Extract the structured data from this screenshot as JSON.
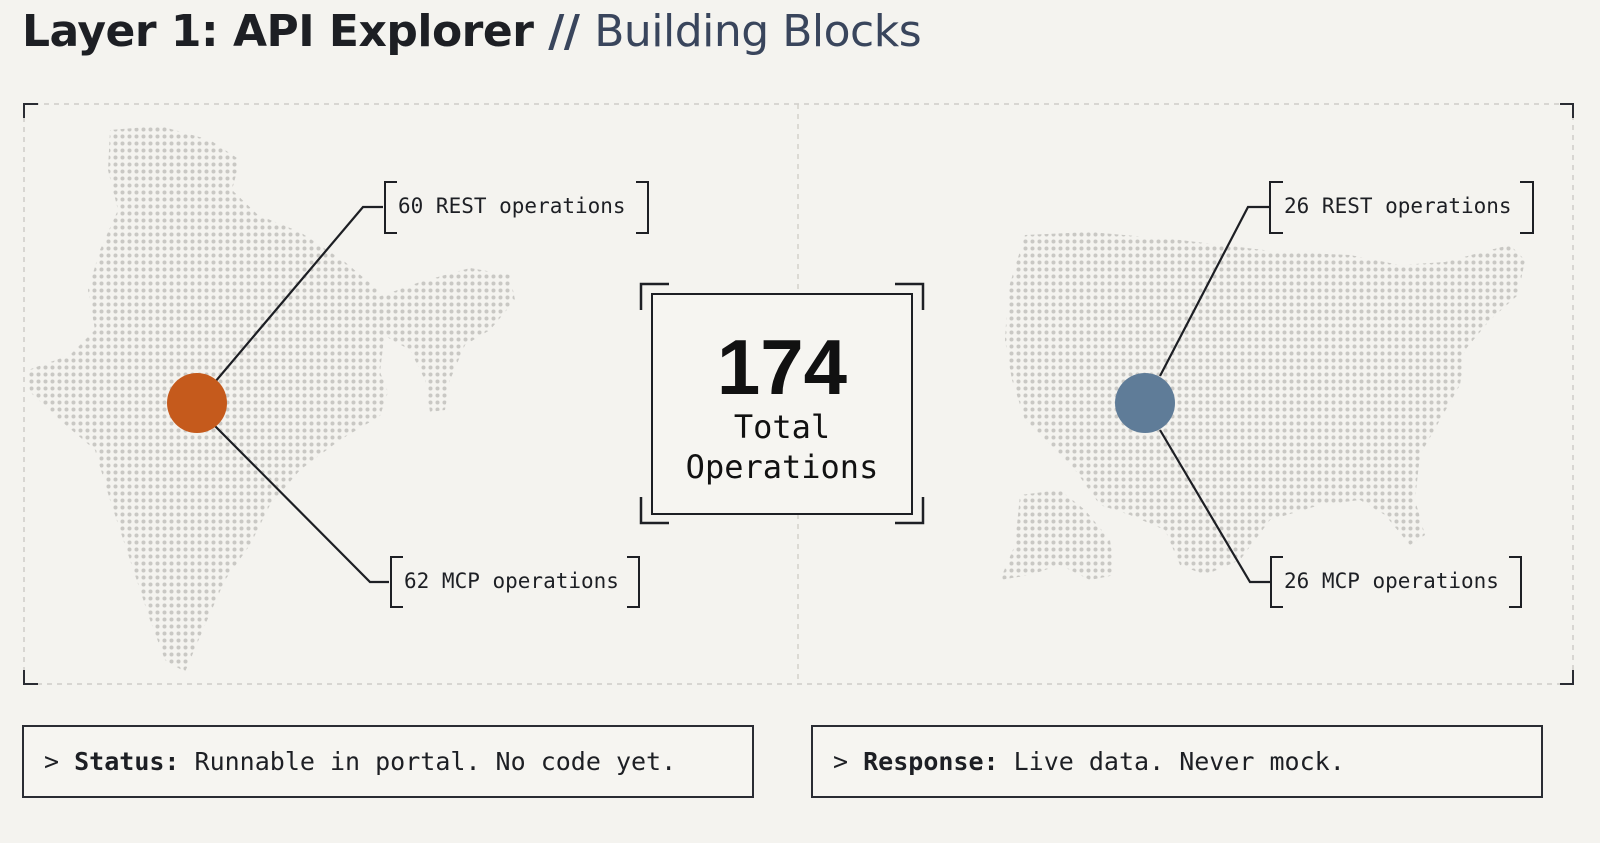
{
  "header": {
    "title_main": "Layer 1: API Explorer",
    "title_sep": "//",
    "title_sub": "Building Blocks"
  },
  "left": {
    "rest": "60 REST operations",
    "mcp": "62 MCP operations",
    "color": "#c55a1c"
  },
  "right": {
    "rest": "26 REST operations",
    "mcp": "26 MCP operations",
    "color": "#5f7c98"
  },
  "center": {
    "total": "174",
    "label_line1": "Total",
    "label_line2": "Operations"
  },
  "footer": {
    "status_prefix": "> ",
    "status_key": "Status:",
    "status_text": " Runnable in portal. No code yet.",
    "response_prefix": "> ",
    "response_key": "Response:",
    "response_text": " Live data. Never mock."
  }
}
